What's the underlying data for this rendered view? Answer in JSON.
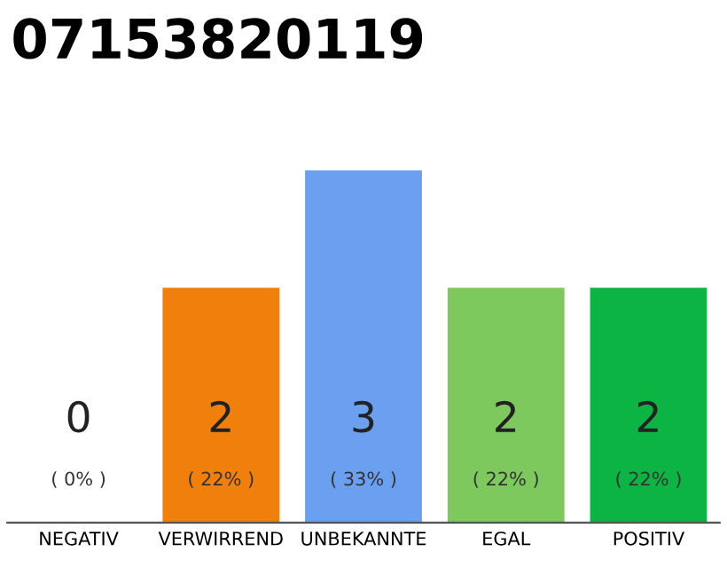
{
  "chart_data": {
    "type": "bar",
    "title": "07153820119",
    "categories": [
      "NEGATIV",
      "VERWIRREND",
      "UNBEKANNTE",
      "EGAL",
      "POSITIV"
    ],
    "values": [
      0,
      2,
      3,
      2,
      2
    ],
    "colors": [
      "#555555",
      "#f07f0c",
      "#6aa0ef",
      "#7dc95e",
      "#0bb443"
    ],
    "value_labels": [
      "0\n( 0% )",
      "2\n( 22% )",
      "3\n( 33% )",
      "2\n( 22% )",
      "2\n( 22% )"
    ],
    "grid": false,
    "legend": false
  }
}
